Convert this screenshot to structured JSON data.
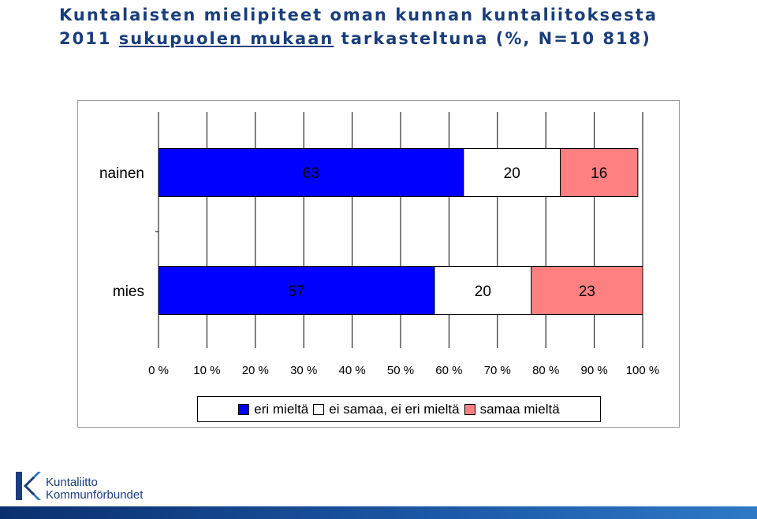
{
  "title": {
    "line1": "Kuntalaisten mielipiteet oman kunnan kuntaliitoksesta",
    "line2_year": "2011",
    "line2_underlined": "sukupuolen mukaan",
    "line2_rest": "tarkasteltuna (%, N=10 818)"
  },
  "chart_data": {
    "type": "bar",
    "orientation": "horizontal",
    "stacked": "percent",
    "categories": [
      "nainen",
      "mies"
    ],
    "series": [
      {
        "name": "eri mieltä",
        "values": [
          63,
          57
        ],
        "color": "#0000ff"
      },
      {
        "name": "ei samaa, ei eri mieltä",
        "values": [
          20,
          20
        ],
        "color": "#ffffff"
      },
      {
        "name": "samaa mieltä",
        "values": [
          16,
          23
        ],
        "color": "#ff8080"
      }
    ],
    "xlim": [
      0,
      100
    ],
    "xticks": [
      "0 %",
      "10 %",
      "20 %",
      "30 %",
      "40 %",
      "50 %",
      "60 %",
      "70 %",
      "80 %",
      "90 %",
      "100 %"
    ],
    "grid": true,
    "legend": "bottom"
  },
  "legend": {
    "items": [
      {
        "label": "eri mieltä",
        "color": "#0000ff"
      },
      {
        "label": "ei samaa, ei eri mieltä",
        "color": "#ffffff"
      },
      {
        "label": "samaa mieltä",
        "color": "#ff8080"
      }
    ]
  },
  "logo": {
    "line1": "Kuntaliitto",
    "line2": "Kommunförbundet",
    "color": "#1a3e7c"
  }
}
